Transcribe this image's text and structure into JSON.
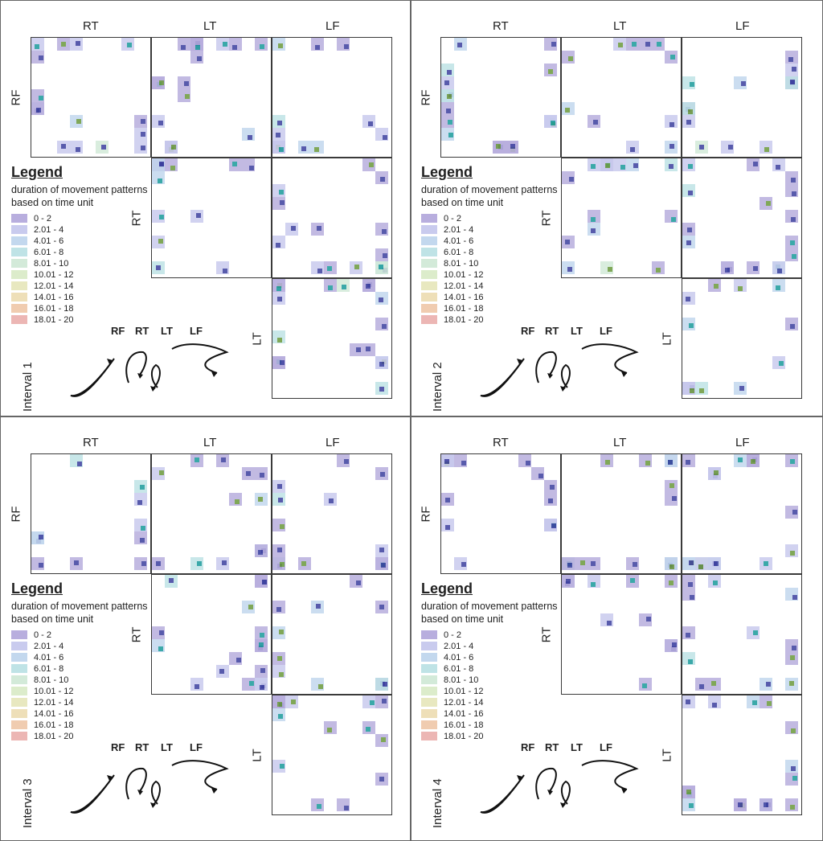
{
  "matrix_labels": {
    "rt": "RT",
    "lt": "LT",
    "lf": "LF",
    "rf": "RF"
  },
  "legend": {
    "title": "Legend",
    "description": "duration of movement patterns based on time unit",
    "items": [
      {
        "range": "0 - 2",
        "color": "#b8aede"
      },
      {
        "range": "2.01 - 4",
        "color": "#c9cbee"
      },
      {
        "range": "4.01 - 6",
        "color": "#c3d8ee"
      },
      {
        "range": "6.01 - 8",
        "color": "#bfe3e6"
      },
      {
        "range": "8.01 - 10",
        "color": "#d3ead9"
      },
      {
        "range": "10.01 - 12",
        "color": "#dceccb"
      },
      {
        "range": "12.01 - 14",
        "color": "#e8e8c0"
      },
      {
        "range": "14.01 - 16",
        "color": "#eedfb8"
      },
      {
        "range": "16.01 - 18",
        "color": "#f0ccb0"
      },
      {
        "range": "18.01 - 20",
        "color": "#ecb6b4"
      }
    ]
  },
  "colors": {
    "dot_dark": "#3b3f9e",
    "dot_teal": "#1a9b9b",
    "dot_green": "#6a9a3c",
    "border": "#3a3a3a"
  },
  "intervals": [
    {
      "label": "Interval 1",
      "steps": [
        "RF",
        "RT",
        "LT",
        "LF"
      ]
    },
    {
      "label": "Interval 2",
      "steps": [
        "RF",
        "RT",
        "LT",
        "LF"
      ]
    },
    {
      "label": "Interval 3",
      "steps": [
        "RF",
        "RT",
        "LT",
        "LF"
      ]
    },
    {
      "label": "Interval 4",
      "steps": [
        "RF",
        "RT",
        "LT",
        "LF"
      ]
    }
  ]
}
